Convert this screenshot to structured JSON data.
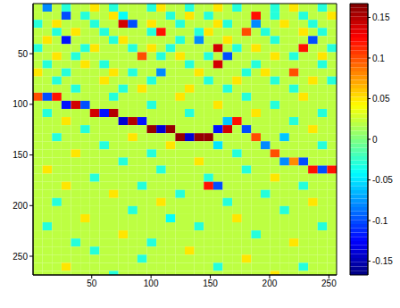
{
  "chart_data": {
    "type": "heatmap",
    "color": "jet",
    "x": [
      4.5,
      12.5,
      20.5,
      28.5,
      36.5,
      44.5,
      52.5,
      60.5,
      68.5,
      76.5,
      84.5,
      92.5,
      100.5,
      108.5,
      116.5,
      124.5,
      132.5,
      140.5,
      148.5,
      156.5,
      164.5,
      172.5,
      180.5,
      188.5,
      196.5,
      204.5,
      212.5,
      220.5,
      228.5,
      236.5,
      244.5,
      252.5
    ],
    "y": [
      4.5,
      12.5,
      20.5,
      28.5,
      36.5,
      44.5,
      52.5,
      60.5,
      68.5,
      76.5,
      84.5,
      92.5,
      100.5,
      108.5,
      116.5,
      124.5,
      132.5,
      140.5,
      148.5,
      156.5,
      164.5,
      172.5,
      180.5,
      188.5,
      196.5,
      204.5,
      212.5,
      220.5,
      228.5,
      236.5,
      244.5,
      252.5,
      260.5,
      268.5
    ],
    "xlim": [
      0.5,
      256.5
    ],
    "ylim": [
      0.5,
      268.5
    ],
    "xticks": [
      50,
      100,
      150,
      200,
      250
    ],
    "yticks": [
      50,
      100,
      150,
      200,
      250
    ],
    "cells": [
      [
        0.02,
        -0.08,
        0.02,
        -0.03,
        0.02,
        0.02,
        0.05,
        0.02,
        -0.03,
        0.02,
        0.02,
        0.02,
        -0.03,
        0.05,
        0.02,
        0.02,
        -0.03,
        0.02,
        0.02,
        0.05,
        0.02,
        -0.03,
        0.02,
        0.02,
        0.02,
        -0.03,
        0.02,
        0.05,
        0.02,
        0.02,
        -0.03,
        0.02
      ],
      [
        0.02,
        0.02,
        0.02,
        -0.1,
        0.02,
        -0.03,
        0.02,
        0.02,
        0.05,
        -0.04,
        0.02,
        0.02,
        0.02,
        0.02,
        -0.03,
        0.02,
        0.05,
        0.02,
        -0.03,
        0.02,
        0.02,
        0.02,
        0.02,
        0.12,
        0.02,
        -0.03,
        0.02,
        0.02,
        -0.03,
        0.02,
        0.02,
        0.05
      ],
      [
        -0.03,
        0.02,
        0.05,
        0.02,
        0.02,
        0.02,
        -0.03,
        0.02,
        0.02,
        0.14,
        -0.1,
        0.02,
        0.05,
        0.02,
        0.02,
        -0.03,
        0.02,
        0.02,
        0.02,
        0.05,
        -0.03,
        0.02,
        0.02,
        -0.08,
        0.02,
        0.02,
        0.05,
        0.02,
        0.02,
        -0.03,
        0.02,
        0.02
      ],
      [
        0.02,
        0.02,
        -0.03,
        0.02,
        0.05,
        0.02,
        0.02,
        -0.03,
        0.02,
        0.02,
        0.02,
        0.02,
        -0.03,
        0.12,
        0.02,
        0.02,
        0.02,
        -0.03,
        0.05,
        0.02,
        0.02,
        0.02,
        0.1,
        0.02,
        -0.03,
        0.02,
        0.02,
        0.02,
        0.05,
        0.02,
        -0.03,
        0.02
      ],
      [
        0.02,
        0.05,
        0.02,
        -0.12,
        0.02,
        0.02,
        0.02,
        0.02,
        -0.03,
        0.05,
        0.02,
        0.02,
        0.02,
        0.02,
        0.02,
        -0.03,
        0.02,
        -0.08,
        0.02,
        0.02,
        0.05,
        0.02,
        0.02,
        0.02,
        0.02,
        -0.03,
        0.02,
        0.02,
        0.02,
        -0.1,
        0.02,
        0.02
      ],
      [
        -0.03,
        0.02,
        0.02,
        0.02,
        0.02,
        -0.03,
        0.05,
        0.02,
        0.02,
        0.02,
        -0.03,
        0.02,
        0.05,
        0.02,
        -0.03,
        0.02,
        0.02,
        0.02,
        0.02,
        0.14,
        0.02,
        -0.03,
        0.02,
        0.05,
        0.02,
        0.02,
        0.02,
        0.02,
        0.12,
        0.02,
        0.02,
        -0.03
      ],
      [
        0.02,
        0.02,
        0.05,
        0.02,
        -0.03,
        0.02,
        0.02,
        0.02,
        0.02,
        0.02,
        0.02,
        0.1,
        0.02,
        -0.03,
        0.02,
        0.05,
        0.02,
        0.02,
        -0.03,
        0.02,
        -0.1,
        0.02,
        0.02,
        0.02,
        0.02,
        0.05,
        0.02,
        -0.03,
        0.02,
        0.02,
        0.05,
        0.02
      ],
      [
        0.02,
        -0.03,
        0.02,
        0.02,
        0.02,
        0.05,
        0.02,
        -0.03,
        0.02,
        0.02,
        0.02,
        0.02,
        0.02,
        0.02,
        0.02,
        0.02,
        -0.03,
        0.02,
        0.02,
        0.14,
        0.02,
        0.02,
        0.02,
        -0.03,
        0.02,
        0.02,
        0.02,
        0.02,
        0.02,
        0.02,
        -0.03,
        0.02
      ],
      [
        0.05,
        0.02,
        0.02,
        -0.03,
        0.02,
        0.02,
        0.02,
        0.02,
        0.05,
        0.02,
        -0.03,
        0.02,
        0.02,
        -0.08,
        0.02,
        0.02,
        0.02,
        0.05,
        0.02,
        0.02,
        0.02,
        0.02,
        -0.03,
        0.02,
        0.05,
        0.02,
        0.02,
        0.1,
        0.02,
        0.02,
        0.02,
        0.02
      ],
      [
        0.02,
        0.02,
        -0.03,
        0.02,
        0.02,
        0.02,
        0.02,
        0.05,
        0.02,
        0.02,
        0.02,
        0.02,
        -0.03,
        0.02,
        0.02,
        0.02,
        0.02,
        0.02,
        -0.03,
        0.02,
        0.02,
        0.05,
        0.02,
        0.02,
        0.02,
        -0.03,
        0.02,
        0.02,
        0.02,
        0.05,
        0.02,
        -0.03
      ],
      [
        0.02,
        0.02,
        0.02,
        0.02,
        -0.03,
        0.02,
        0.02,
        0.02,
        0.02,
        -0.03,
        0.02,
        0.05,
        0.02,
        0.02,
        0.02,
        0.02,
        0.05,
        0.02,
        0.02,
        0.02,
        -0.03,
        0.02,
        0.02,
        0.02,
        0.02,
        0.02,
        0.02,
        -0.03,
        0.02,
        0.02,
        0.02,
        0.02
      ],
      [
        0.1,
        -0.1,
        0.12,
        0.02,
        0.02,
        0.02,
        0.02,
        0.02,
        -0.03,
        0.02,
        0.02,
        0.02,
        0.02,
        0.02,
        0.02,
        0.05,
        0.02,
        0.02,
        0.02,
        0.02,
        0.02,
        0.02,
        -0.03,
        0.02,
        0.02,
        0.02,
        0.02,
        0.02,
        0.05,
        0.02,
        0.02,
        0.02
      ],
      [
        0.02,
        0.02,
        0.02,
        -0.12,
        0.14,
        -0.1,
        0.02,
        0.02,
        0.02,
        0.02,
        0.02,
        0.02,
        -0.03,
        0.02,
        0.02,
        0.02,
        0.02,
        0.02,
        0.02,
        0.05,
        0.02,
        0.02,
        0.02,
        0.02,
        0.02,
        -0.03,
        0.02,
        0.02,
        0.02,
        0.02,
        0.02,
        0.02
      ],
      [
        0.02,
        -0.03,
        0.02,
        0.02,
        0.02,
        0.02,
        0.14,
        -0.12,
        0.15,
        0.02,
        0.02,
        0.02,
        0.02,
        0.02,
        0.02,
        0.02,
        -0.03,
        0.02,
        0.02,
        0.02,
        0.02,
        0.02,
        0.02,
        0.05,
        0.02,
        0.02,
        0.02,
        0.02,
        0.02,
        0.02,
        -0.03,
        0.02
      ],
      [
        0.02,
        0.02,
        0.02,
        0.05,
        0.02,
        0.02,
        0.02,
        0.02,
        0.02,
        -0.14,
        0.15,
        -0.12,
        0.02,
        0.02,
        0.02,
        0.02,
        0.02,
        0.02,
        0.02,
        0.02,
        -0.06,
        0.12,
        0.02,
        0.02,
        0.02,
        0.02,
        0.02,
        -0.03,
        0.02,
        0.02,
        0.02,
        0.02
      ],
      [
        0.02,
        0.02,
        0.02,
        0.02,
        0.02,
        -0.03,
        0.02,
        0.02,
        0.02,
        0.02,
        0.02,
        0.02,
        0.16,
        -0.14,
        0.16,
        0.02,
        0.02,
        0.02,
        0.02,
        -0.12,
        0.14,
        0.02,
        -0.1,
        0.02,
        0.02,
        0.02,
        0.02,
        0.02,
        0.02,
        0.05,
        0.02,
        0.02
      ],
      [
        0.02,
        0.02,
        -0.03,
        0.02,
        0.02,
        0.02,
        0.02,
        0.02,
        0.02,
        0.02,
        0.05,
        0.02,
        0.02,
        0.02,
        0.02,
        0.16,
        -0.14,
        0.16,
        0.16,
        0.02,
        0.02,
        0.02,
        0.02,
        0.1,
        0.02,
        0.02,
        -0.06,
        0.02,
        0.02,
        0.02,
        0.02,
        0.02
      ],
      [
        0.02,
        0.02,
        0.02,
        0.02,
        0.02,
        0.02,
        0.02,
        -0.03,
        0.02,
        0.02,
        0.02,
        0.02,
        0.02,
        0.02,
        0.05,
        0.02,
        0.02,
        0.02,
        0.02,
        -0.05,
        0.02,
        0.02,
        0.02,
        0.02,
        -0.08,
        0.02,
        0.02,
        0.02,
        0.02,
        0.02,
        -0.03,
        0.02
      ],
      [
        0.02,
        0.02,
        0.02,
        0.02,
        0.05,
        0.02,
        0.02,
        0.02,
        0.02,
        0.02,
        0.02,
        0.02,
        -0.03,
        0.02,
        0.02,
        0.02,
        0.02,
        0.02,
        0.02,
        0.02,
        0.02,
        -0.03,
        0.02,
        0.02,
        0.02,
        0.1,
        0.02,
        0.02,
        0.02,
        0.02,
        0.02,
        0.02
      ],
      [
        0.02,
        0.02,
        0.02,
        0.02,
        0.02,
        0.02,
        0.02,
        0.02,
        0.02,
        -0.03,
        0.02,
        0.02,
        0.02,
        0.02,
        0.02,
        0.02,
        0.02,
        0.05,
        0.02,
        0.02,
        0.02,
        0.02,
        0.02,
        0.02,
        0.02,
        0.02,
        -0.08,
        0.08,
        -0.1,
        0.02,
        0.02,
        0.02
      ],
      [
        0.02,
        0.05,
        0.02,
        0.02,
        0.02,
        0.02,
        0.02,
        0.02,
        0.02,
        0.02,
        0.02,
        0.02,
        0.02,
        -0.03,
        0.02,
        0.02,
        0.02,
        0.02,
        0.02,
        0.02,
        0.02,
        0.02,
        -0.03,
        0.02,
        0.02,
        0.02,
        0.02,
        0.02,
        0.02,
        0.12,
        -0.1,
        0.12
      ],
      [
        0.02,
        0.02,
        0.02,
        0.02,
        0.02,
        0.02,
        -0.03,
        0.02,
        0.02,
        0.02,
        0.02,
        0.02,
        0.02,
        0.02,
        0.02,
        0.02,
        0.02,
        0.02,
        -0.03,
        0.02,
        0.02,
        0.02,
        0.02,
        0.02,
        0.02,
        0.05,
        0.02,
        0.02,
        0.02,
        0.02,
        0.02,
        0.02
      ],
      [
        0.02,
        0.02,
        0.02,
        0.05,
        0.02,
        0.02,
        0.02,
        0.02,
        0.02,
        0.02,
        0.02,
        -0.03,
        0.02,
        0.02,
        0.02,
        0.02,
        0.02,
        0.02,
        0.12,
        -0.1,
        0.02,
        0.02,
        0.02,
        0.02,
        0.02,
        0.02,
        0.02,
        0.02,
        -0.03,
        0.02,
        0.02,
        0.02
      ],
      [
        0.02,
        0.02,
        0.02,
        0.02,
        0.02,
        0.02,
        0.02,
        0.02,
        0.05,
        0.02,
        0.02,
        0.02,
        0.02,
        0.02,
        0.02,
        -0.03,
        0.02,
        0.02,
        0.02,
        0.02,
        0.02,
        0.02,
        0.02,
        0.02,
        -0.03,
        0.02,
        0.02,
        0.02,
        0.02,
        0.02,
        0.02,
        0.02
      ],
      [
        0.02,
        0.02,
        -0.03,
        0.02,
        0.02,
        0.02,
        0.02,
        0.02,
        0.02,
        0.02,
        0.02,
        0.02,
        0.02,
        0.05,
        0.02,
        0.02,
        0.02,
        0.02,
        0.02,
        0.02,
        -0.03,
        0.02,
        0.02,
        0.02,
        0.02,
        0.02,
        0.02,
        0.02,
        0.02,
        0.05,
        0.02,
        0.02
      ],
      [
        0.02,
        0.02,
        0.02,
        0.02,
        0.02,
        0.02,
        0.02,
        0.02,
        0.02,
        0.02,
        -0.03,
        0.02,
        0.02,
        0.02,
        0.02,
        0.02,
        0.02,
        0.02,
        0.02,
        0.02,
        0.02,
        0.02,
        0.02,
        0.02,
        0.02,
        0.02,
        -0.03,
        0.02,
        0.02,
        0.02,
        0.02,
        0.02
      ],
      [
        0.02,
        0.02,
        0.02,
        0.02,
        0.02,
        0.05,
        0.02,
        0.02,
        0.02,
        0.02,
        0.02,
        0.02,
        0.02,
        0.02,
        -0.04,
        0.02,
        0.02,
        0.02,
        0.02,
        0.02,
        0.02,
        0.05,
        0.02,
        0.02,
        0.02,
        0.02,
        0.02,
        0.02,
        0.02,
        0.02,
        0.02,
        0.02
      ],
      [
        0.02,
        -0.03,
        0.02,
        0.02,
        0.02,
        0.02,
        0.02,
        0.02,
        0.02,
        0.02,
        0.02,
        0.02,
        0.02,
        0.02,
        0.02,
        0.02,
        0.02,
        -0.03,
        0.02,
        0.02,
        0.02,
        0.02,
        0.02,
        0.02,
        0.02,
        0.02,
        0.02,
        0.02,
        0.02,
        0.02,
        -0.03,
        0.02
      ],
      [
        0.02,
        0.02,
        0.02,
        0.02,
        0.02,
        0.02,
        0.02,
        0.02,
        0.02,
        0.05,
        0.02,
        0.02,
        0.02,
        0.02,
        0.02,
        0.02,
        0.02,
        0.02,
        0.02,
        0.02,
        0.02,
        0.02,
        0.02,
        -0.03,
        0.02,
        0.02,
        0.02,
        0.02,
        0.02,
        0.02,
        0.02,
        0.02
      ],
      [
        0.02,
        0.02,
        0.02,
        0.02,
        -0.03,
        0.02,
        0.02,
        0.02,
        0.02,
        0.02,
        0.02,
        0.02,
        -0.03,
        0.02,
        0.02,
        0.02,
        0.02,
        0.02,
        0.02,
        0.02,
        0.02,
        0.02,
        0.02,
        0.02,
        0.02,
        0.02,
        0.02,
        0.05,
        0.02,
        0.02,
        0.02,
        0.02
      ],
      [
        0.02,
        0.02,
        0.02,
        0.02,
        0.02,
        0.02,
        -0.03,
        0.02,
        0.02,
        0.02,
        0.02,
        0.02,
        0.02,
        0.02,
        0.02,
        0.02,
        0.05,
        0.02,
        0.02,
        0.02,
        0.02,
        0.02,
        0.02,
        0.02,
        0.02,
        0.02,
        0.02,
        0.02,
        0.02,
        0.02,
        0.02,
        0.02
      ],
      [
        0.02,
        0.02,
        0.02,
        0.02,
        0.02,
        0.02,
        0.02,
        0.02,
        0.02,
        0.02,
        0.02,
        -0.03,
        0.02,
        0.02,
        0.02,
        0.02,
        0.02,
        0.02,
        0.02,
        0.02,
        0.02,
        0.02,
        0.05,
        0.02,
        0.02,
        0.02,
        0.02,
        0.02,
        0.02,
        0.02,
        0.02,
        0.02
      ],
      [
        0.02,
        0.02,
        0.02,
        0.05,
        0.02,
        0.02,
        0.02,
        0.02,
        0.02,
        0.02,
        0.02,
        0.02,
        0.02,
        0.02,
        0.02,
        0.02,
        0.02,
        0.02,
        0.02,
        -0.03,
        0.02,
        0.02,
        0.02,
        0.02,
        0.02,
        0.02,
        0.02,
        0.02,
        -0.03,
        0.02,
        0.02,
        0.02
      ],
      [
        0.02,
        0.02,
        0.02,
        0.02,
        0.02,
        0.02,
        0.02,
        0.02,
        -0.03,
        0.02,
        0.02,
        0.02,
        0.02,
        0.02,
        0.02,
        0.02,
        0.02,
        0.02,
        0.02,
        0.02,
        0.02,
        0.02,
        0.02,
        0.02,
        0.02,
        0.05,
        0.02,
        0.02,
        0.02,
        0.02,
        0.02,
        0.02
      ]
    ],
    "colorbar": {
      "range": [
        -0.167,
        0.167
      ],
      "ticks": [
        -0.15,
        -0.1,
        -0.05,
        0,
        0.05,
        0.1,
        0.15
      ]
    }
  }
}
